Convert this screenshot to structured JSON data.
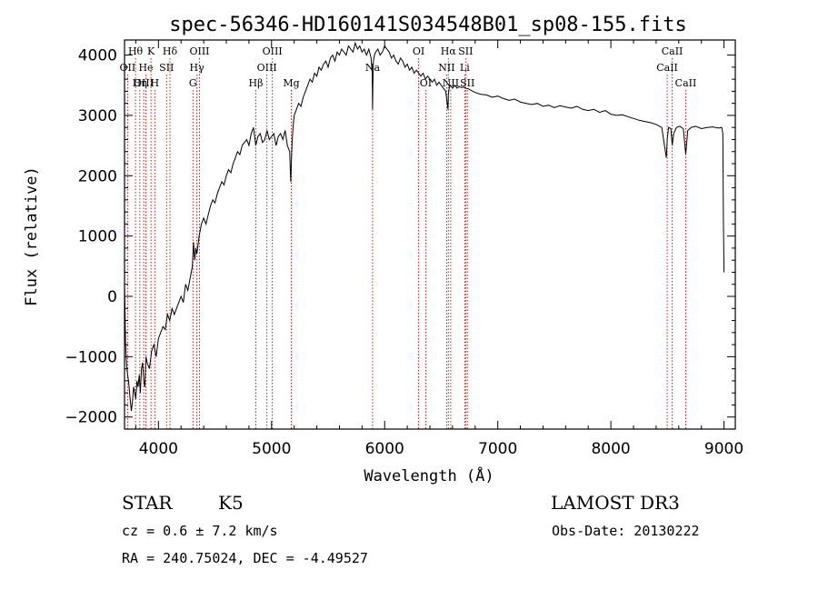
{
  "chart_data": {
    "type": "line",
    "title": "spec-56346-HD160141S034548B01_sp08-155.fits",
    "xlabel": "Wavelength (Å)",
    "ylabel": "Flux (relative)",
    "xlim": [
      3700,
      9100
    ],
    "ylim": [
      -2200,
      4250
    ],
    "xticks": [
      4000,
      5000,
      6000,
      7000,
      8000,
      9000
    ],
    "yticks": [
      -2000,
      -1000,
      0,
      1000,
      2000,
      3000,
      4000
    ],
    "grid": false,
    "series": [
      {
        "x": [
          3700,
          3710,
          3720,
          3735,
          3750,
          3760,
          3770,
          3780,
          3790,
          3800,
          3810,
          3820,
          3830,
          3840,
          3850,
          3860,
          3870,
          3880,
          3890,
          3900,
          3920,
          3940,
          3960,
          3980,
          4000,
          4020,
          4040,
          4060,
          4080,
          4100,
          4120,
          4140,
          4160,
          4180,
          4200,
          4220,
          4240,
          4260,
          4280,
          4300,
          4310,
          4320,
          4330,
          4340,
          4360,
          4380,
          4400,
          4420,
          4440,
          4460,
          4480,
          4500,
          4520,
          4540,
          4560,
          4580,
          4600,
          4620,
          4640,
          4660,
          4680,
          4700,
          4720,
          4740,
          4760,
          4780,
          4800,
          4820,
          4840,
          4860,
          4880,
          4900,
          4920,
          4940,
          4960,
          4980,
          5000,
          5020,
          5040,
          5060,
          5080,
          5100,
          5120,
          5140,
          5160,
          5170,
          5180,
          5190,
          5200,
          5220,
          5240,
          5260,
          5280,
          5300,
          5320,
          5340,
          5360,
          5380,
          5400,
          5420,
          5440,
          5460,
          5480,
          5500,
          5520,
          5540,
          5560,
          5580,
          5600,
          5620,
          5640,
          5660,
          5680,
          5700,
          5720,
          5740,
          5760,
          5780,
          5800,
          5820,
          5840,
          5860,
          5880,
          5890,
          5893,
          5896,
          5900,
          5910,
          5920,
          5940,
          5960,
          5980,
          6000,
          6020,
          6040,
          6060,
          6080,
          6100,
          6120,
          6140,
          6160,
          6180,
          6200,
          6220,
          6240,
          6260,
          6280,
          6300,
          6320,
          6340,
          6360,
          6380,
          6400,
          6420,
          6440,
          6460,
          6480,
          6500,
          6520,
          6540,
          6560,
          6563,
          6570,
          6580,
          6600,
          6620,
          6640,
          6660,
          6680,
          6700,
          6720,
          6740,
          6760,
          6780,
          6800,
          6850,
          6900,
          6950,
          7000,
          7050,
          7100,
          7150,
          7200,
          7250,
          7300,
          7350,
          7400,
          7450,
          7500,
          7550,
          7600,
          7650,
          7700,
          7750,
          7800,
          7850,
          7900,
          7950,
          8000,
          8050,
          8100,
          8150,
          8200,
          8250,
          8300,
          8350,
          8400,
          8450,
          8490,
          8498,
          8510,
          8530,
          8542,
          8555,
          8580,
          8610,
          8640,
          8662,
          8680,
          8710,
          8750,
          8800,
          8850,
          8900,
          8950,
          8980,
          8990,
          8995,
          9000
        ],
        "y": [
          200,
          -800,
          -1200,
          -1400,
          -1700,
          -1900,
          -1750,
          -1500,
          -1600,
          -1700,
          -1400,
          -1500,
          -1300,
          -1600,
          -1200,
          -1100,
          -1400,
          -1500,
          -1000,
          -1100,
          -1200,
          -900,
          -800,
          -1000,
          -700,
          -600,
          -500,
          -550,
          -300,
          -400,
          -200,
          -300,
          -200,
          -100,
          0,
          -100,
          200,
          100,
          300,
          500,
          900,
          600,
          800,
          700,
          1000,
          1200,
          1300,
          1200,
          1350,
          1500,
          1600,
          1550,
          1700,
          1800,
          1900,
          1850,
          2000,
          2100,
          2050,
          2200,
          2300,
          2400,
          2350,
          2500,
          2550,
          2600,
          2500,
          2700,
          2800,
          2500,
          2650,
          2700,
          2550,
          2600,
          2750,
          2600,
          2650,
          2700,
          2500,
          2650,
          2700,
          2600,
          2750,
          2500,
          2400,
          1900,
          2500,
          2800,
          3000,
          3100,
          3200,
          3150,
          3300,
          3400,
          3500,
          3600,
          3550,
          3700,
          3650,
          3800,
          3750,
          3850,
          3900,
          3800,
          3950,
          4000,
          3900,
          4050,
          4000,
          4100,
          4050,
          4000,
          4150,
          4100,
          4050,
          4200,
          4100,
          4150,
          4050,
          4100,
          4000,
          4100,
          3950,
          3700,
          3100,
          3550,
          3900,
          4000,
          4050,
          4100,
          4000,
          4050,
          4150,
          4100,
          4050,
          3950,
          4000,
          3900,
          3850,
          3950,
          3900,
          3800,
          3850,
          3750,
          3800,
          3700,
          3750,
          3700,
          3650,
          3700,
          3600,
          3650,
          3600,
          3550,
          3600,
          3500,
          3550,
          3500,
          3450,
          3400,
          3100,
          3350,
          3450,
          3500,
          3450,
          3500,
          3450,
          3480,
          3460,
          3470,
          3450,
          3440,
          3420,
          3400,
          3380,
          3350,
          3340,
          3300,
          3320,
          3280,
          3250,
          3270,
          3220,
          3200,
          3180,
          3200,
          3150,
          3170,
          3130,
          3160,
          3140,
          3120,
          3150,
          3100,
          3080,
          3100,
          3050,
          3080,
          3020,
          3000,
          3010,
          2980,
          2950,
          2920,
          2900,
          2880,
          2850,
          2800,
          2300,
          2600,
          2800,
          2780,
          2500,
          2700,
          2800,
          2820,
          2780,
          2350,
          2750,
          2800,
          2820,
          2780,
          2800,
          2810,
          2790,
          2800,
          2700,
          1300,
          400
        ]
      }
    ],
    "line_markers": [
      {
        "name": "Hθ",
        "wavelength": 3797,
        "row": 0
      },
      {
        "name": "OII",
        "wavelength": 3727,
        "row": 1
      },
      {
        "name": "OIII",
        "wavelength": 3869,
        "row": 2
      },
      {
        "name": "K",
        "wavelength": 3934,
        "row": 0
      },
      {
        "name": "He",
        "wavelength": 3889,
        "row": 1
      },
      {
        "name": "Hη",
        "wavelength": 3835,
        "row": 2
      },
      {
        "name": "SII",
        "wavelength": 4072,
        "row": 1
      },
      {
        "name": "H",
        "wavelength": 3968,
        "row": 2
      },
      {
        "name": "Hδ",
        "wavelength": 4102,
        "row": 0
      },
      {
        "name": "OIII",
        "wavelength": 4363,
        "row": 0
      },
      {
        "name": "Hγ",
        "wavelength": 4340,
        "row": 1
      },
      {
        "name": "G",
        "wavelength": 4305,
        "row": 2
      },
      {
        "name": "OIII",
        "wavelength": 5007,
        "row": 0
      },
      {
        "name": "OIII",
        "wavelength": 4959,
        "row": 1
      },
      {
        "name": "Hβ",
        "wavelength": 4861,
        "row": 2
      },
      {
        "name": "Mg",
        "wavelength": 5175,
        "row": 2
      },
      {
        "name": "Na",
        "wavelength": 5893,
        "row": 1
      },
      {
        "name": "OI",
        "wavelength": 6300,
        "row": 0
      },
      {
        "name": "OI",
        "wavelength": 6363,
        "row": 2
      },
      {
        "name": "Hα",
        "wavelength": 6563,
        "row": 0
      },
      {
        "name": "SII",
        "wavelength": 6716,
        "row": 0
      },
      {
        "name": "NII",
        "wavelength": 6548,
        "row": 1
      },
      {
        "name": "Li",
        "wavelength": 6708,
        "row": 1
      },
      {
        "name": "NII",
        "wavelength": 6584,
        "row": 2
      },
      {
        "name": "SII",
        "wavelength": 6731,
        "row": 2
      },
      {
        "name": "CaII",
        "wavelength": 8542,
        "row": 0
      },
      {
        "name": "CaII",
        "wavelength": 8498,
        "row": 1
      },
      {
        "name": "CaII",
        "wavelength": 8662,
        "row": 2
      }
    ]
  },
  "info": {
    "object_type": "STAR",
    "subclass": "K5",
    "survey": "LAMOST DR3",
    "redshift": "cz = 0.6 ± 7.2 km/s",
    "obs_date": "Obs-Date: 20130222",
    "coords": "RA = 240.75024, DEC =  -4.49527"
  },
  "colors": {
    "spectrum": "#000000",
    "marker_line": "#cc0000"
  }
}
